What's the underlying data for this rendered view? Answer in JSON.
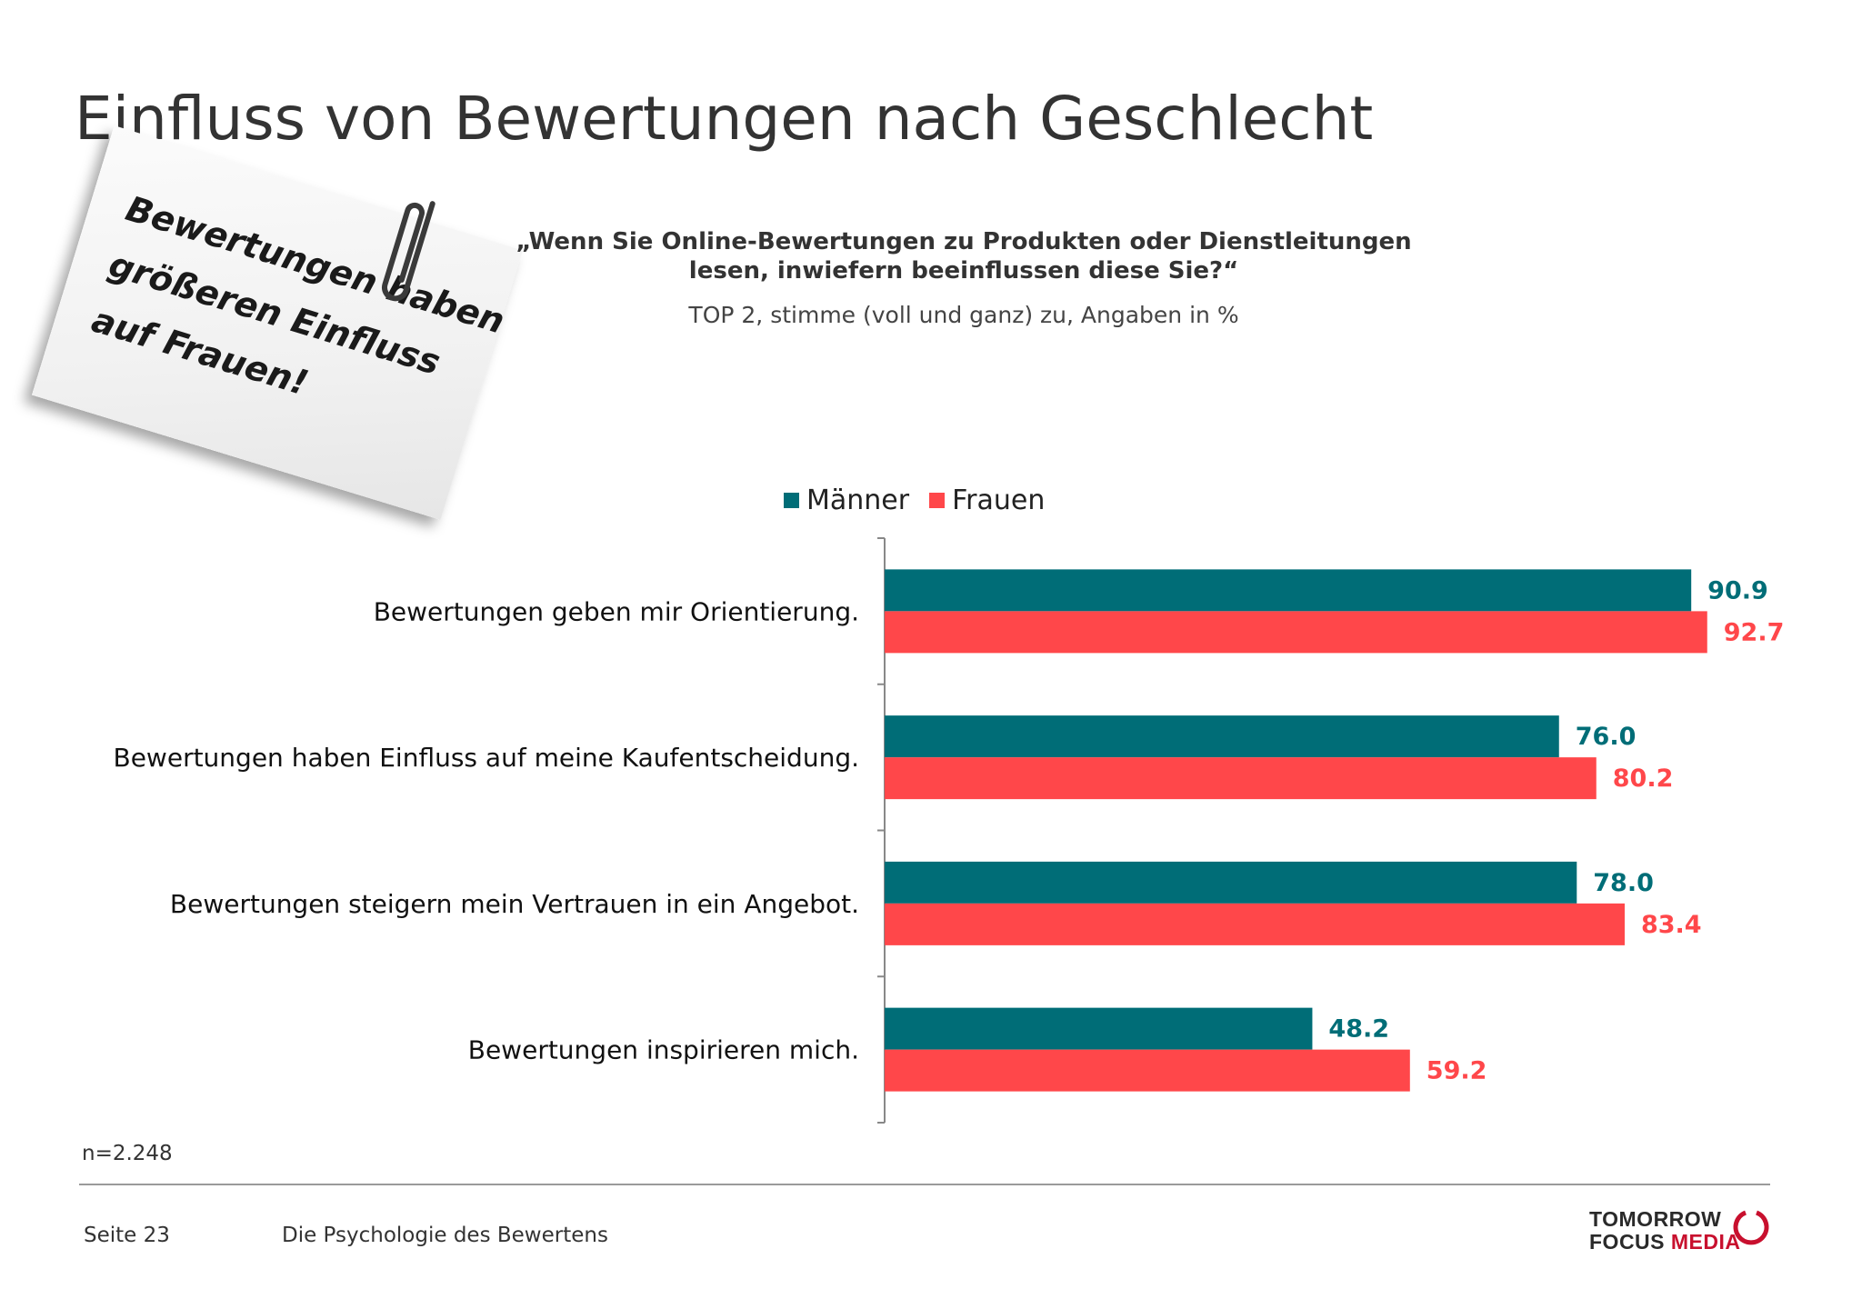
{
  "title": "Einfluss von Bewertungen nach Geschlecht",
  "question": {
    "line1": "„Wenn Sie Online-Bewertungen zu Produkten oder Dienstleitungen",
    "line2": "lesen, inwiefern beeinflussen diese Sie?“"
  },
  "subtitle": "TOP 2, stimme (voll und ganz) zu, Angaben in %",
  "note": {
    "line1": "Bewertungen haben",
    "line2": "größeren Einfluss",
    "line3": "auf Frauen!"
  },
  "colors": {
    "maenner": "#006d77",
    "frauen": "#ff474a"
  },
  "chart_data": {
    "type": "bar",
    "orientation": "horizontal",
    "categories": [
      "Bewertungen geben mir Orientierung.",
      "Bewertungen haben Einfluss auf meine Kaufentscheidung.",
      "Bewertungen steigern mein Vertrauen in ein Angebot.",
      "Bewertungen inspirieren mich."
    ],
    "series": [
      {
        "name": "Männer",
        "values": [
          90.9,
          76.0,
          78.0,
          48.2
        ]
      },
      {
        "name": "Frauen",
        "values": [
          92.7,
          80.2,
          83.4,
          59.2
        ]
      }
    ],
    "value_labels": {
      "Männer": [
        "90.9",
        "76.0",
        "78.0",
        "48.2"
      ],
      "Frauen": [
        "92.7",
        "80.2",
        "83.4",
        "59.2"
      ]
    },
    "xlim": [
      0,
      100
    ],
    "grid": false,
    "legend": "top-center"
  },
  "sample_size": "n=2.248",
  "footer": {
    "page": "Seite 23",
    "text": "Die Psychologie des Bewertens"
  },
  "logo": {
    "line1": "TOMORROW",
    "line2a": "FOCUS",
    "line2b": "MEDIA"
  }
}
